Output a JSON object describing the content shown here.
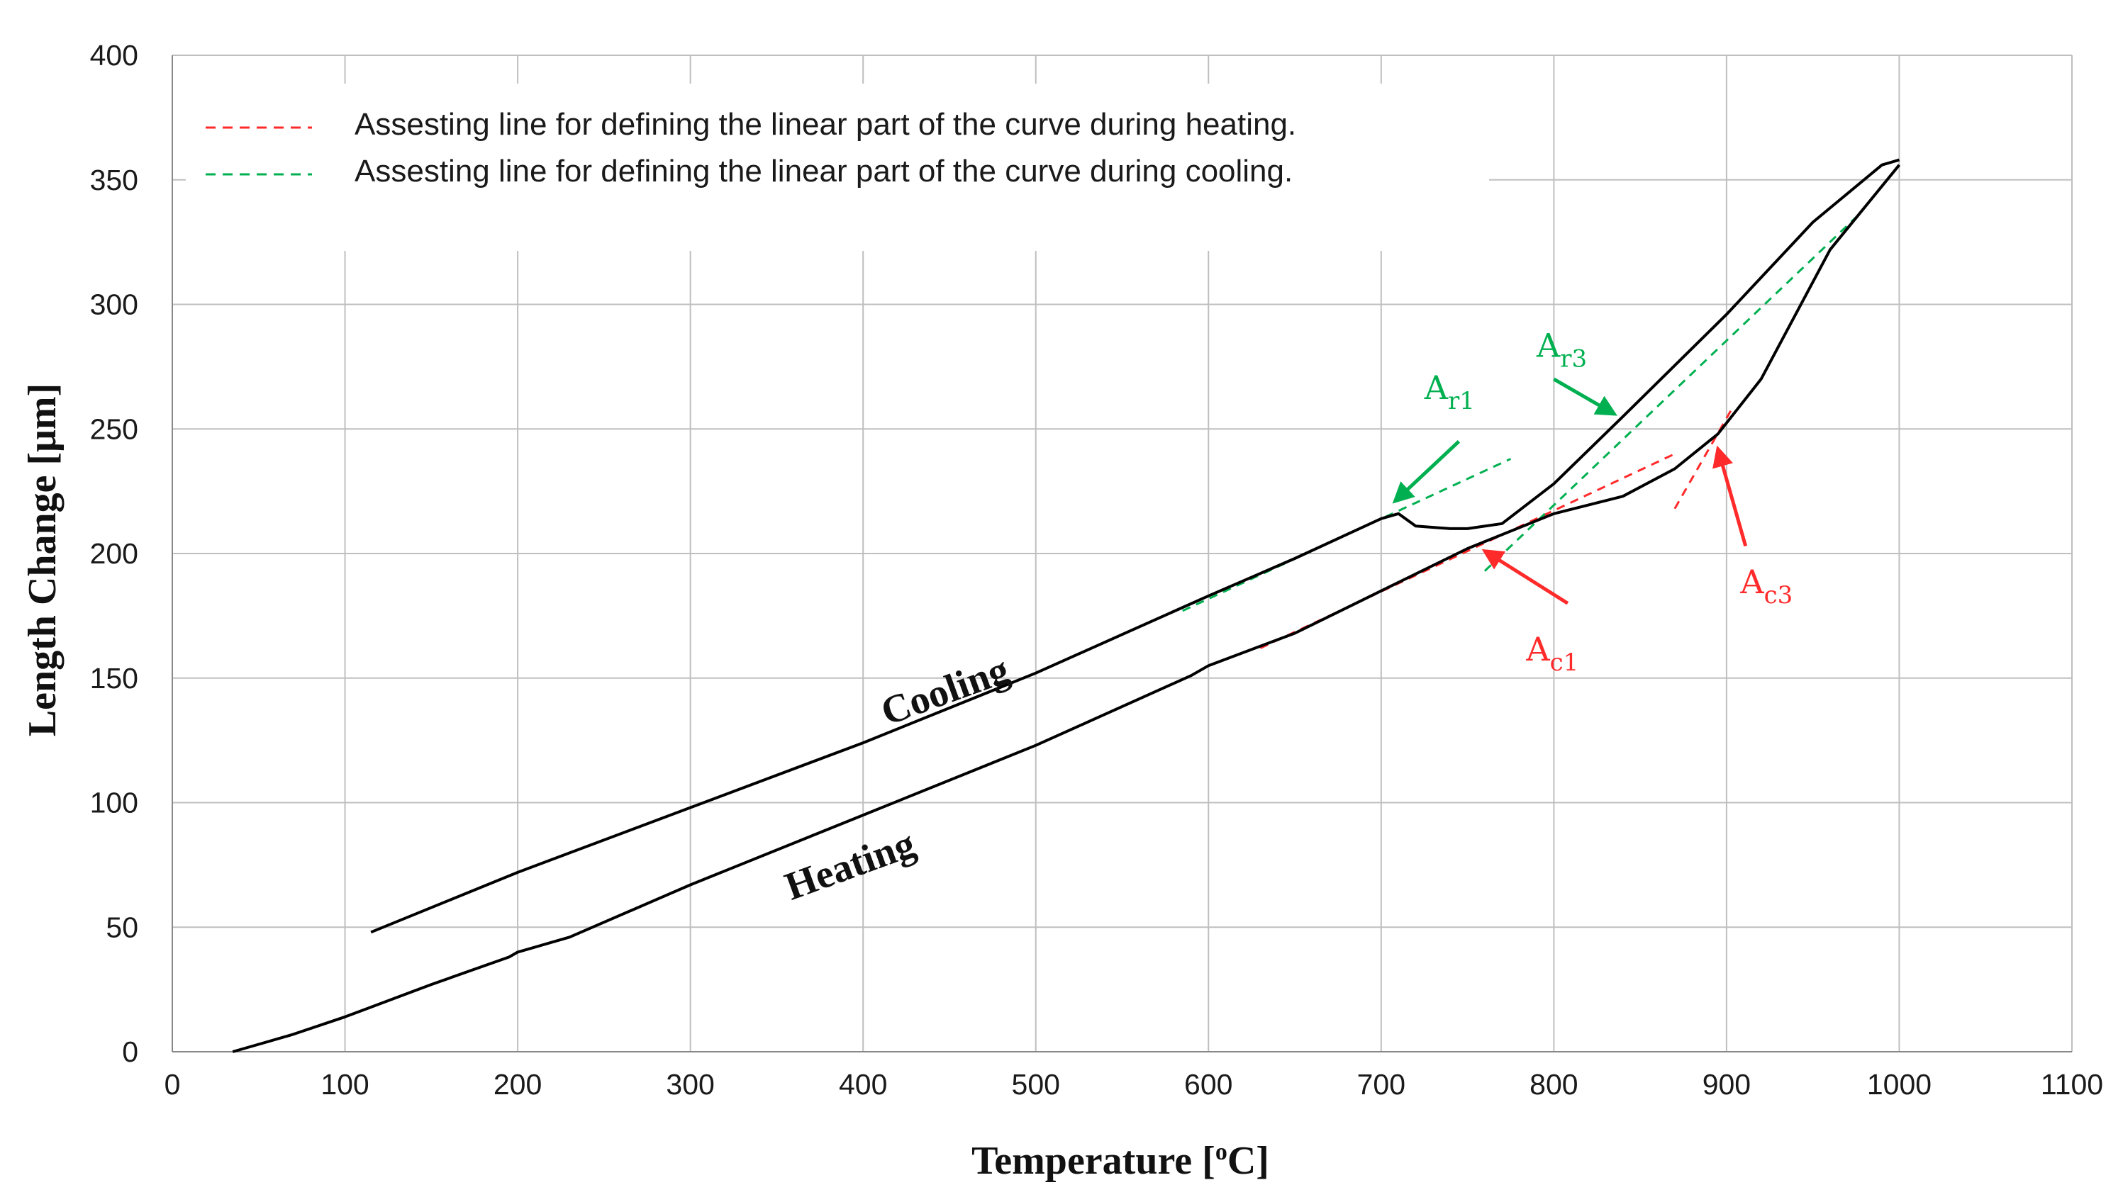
{
  "chart_data": {
    "type": "line",
    "xlabel": "Temperature [",
    "xlabel_sup": "o",
    "xlabel_tail": "C]",
    "ylabel": "Length Change [μm]",
    "xlim": [
      0,
      1100
    ],
    "ylim": [
      0,
      400
    ],
    "x_ticks": [
      0,
      100,
      200,
      300,
      400,
      500,
      600,
      700,
      800,
      900,
      1000,
      1100
    ],
    "y_ticks": [
      0,
      50,
      100,
      150,
      200,
      250,
      300,
      350,
      400
    ],
    "grid": true,
    "legend_position": "top-left",
    "colors": {
      "curve": "#000000",
      "heating_line": "#ff2a2a",
      "cooling_line": "#00b050",
      "grid": "#bfbfbf"
    },
    "curve_labels": {
      "heating": "Heating",
      "cooling": "Cooling"
    },
    "series": [
      {
        "name": "Heating",
        "points": [
          [
            35,
            0
          ],
          [
            50,
            3
          ],
          [
            70,
            7
          ],
          [
            100,
            14
          ],
          [
            150,
            27
          ],
          [
            195,
            38
          ],
          [
            200,
            40
          ],
          [
            230,
            46
          ],
          [
            300,
            67
          ],
          [
            400,
            95
          ],
          [
            500,
            123
          ],
          [
            590,
            151
          ],
          [
            600,
            155
          ],
          [
            650,
            168
          ],
          [
            700,
            185
          ],
          [
            750,
            202
          ],
          [
            800,
            216
          ],
          [
            840,
            223
          ],
          [
            870,
            234
          ],
          [
            895,
            248
          ],
          [
            920,
            270
          ],
          [
            960,
            322
          ],
          [
            1000,
            356
          ]
        ]
      },
      {
        "name": "Cooling",
        "points": [
          [
            115,
            48
          ],
          [
            200,
            72
          ],
          [
            300,
            98
          ],
          [
            400,
            124
          ],
          [
            500,
            152
          ],
          [
            600,
            183
          ],
          [
            650,
            198
          ],
          [
            700,
            214
          ],
          [
            710,
            216
          ],
          [
            720,
            211
          ],
          [
            740,
            210
          ],
          [
            750,
            210
          ],
          [
            770,
            212
          ],
          [
            800,
            228
          ],
          [
            840,
            255
          ],
          [
            900,
            296
          ],
          [
            950,
            333
          ],
          [
            990,
            356
          ],
          [
            1000,
            358
          ]
        ]
      }
    ],
    "legend": [
      {
        "label": "Assesting line for defining the linear part of the curve during heating.",
        "color": "#ff2a2a"
      },
      {
        "label": "Assesting line for defining the linear part of the curve during cooling.",
        "color": "#00b050"
      }
    ],
    "assessing_lines": [
      {
        "kind": "heating",
        "points": [
          [
            630,
            162
          ],
          [
            870,
            240
          ]
        ]
      },
      {
        "kind": "heating",
        "points": [
          [
            870,
            218
          ],
          [
            903,
            258
          ]
        ]
      },
      {
        "kind": "cooling",
        "points": [
          [
            585,
            177
          ],
          [
            775,
            238
          ]
        ]
      },
      {
        "kind": "cooling",
        "points": [
          [
            760,
            193
          ],
          [
            975,
            335
          ]
        ]
      }
    ],
    "annotations": [
      {
        "main": "A",
        "sub": "r1",
        "color": "#00b050",
        "at": [
          725,
          262
        ],
        "arrow_from": [
          745,
          245
        ],
        "arrow_to": [
          708,
          221
        ]
      },
      {
        "main": "A",
        "sub": "r3",
        "color": "#00b050",
        "at": [
          790,
          279
        ],
        "arrow_from": [
          800,
          270
        ],
        "arrow_to": [
          835,
          256
        ]
      },
      {
        "main": "A",
        "sub": "c1",
        "color": "#ff2a2a",
        "at": [
          784,
          157
        ],
        "arrow_from": [
          808,
          180
        ],
        "arrow_to": [
          760,
          201
        ]
      },
      {
        "main": "A",
        "sub": "c3",
        "color": "#ff2a2a",
        "at": [
          908,
          184
        ],
        "arrow_from": [
          911,
          203
        ],
        "arrow_to": [
          895,
          242
        ]
      }
    ]
  }
}
